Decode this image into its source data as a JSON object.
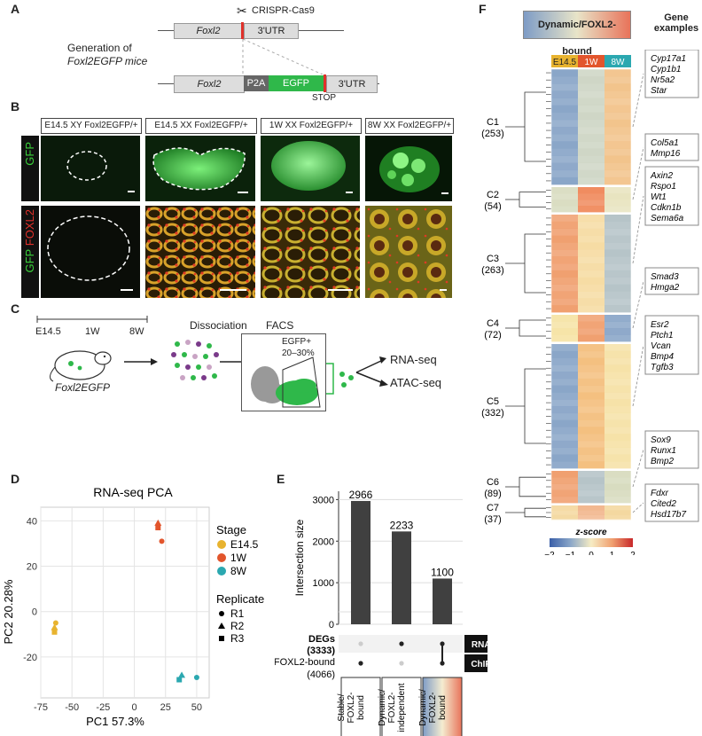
{
  "panel_labels": {
    "a": "A",
    "b": "B",
    "c": "C",
    "d": "D",
    "e": "E",
    "f": "F"
  },
  "panelA": {
    "crispr": "CRISPR-Cas9",
    "generation_line1": "Generation of",
    "generation_line2": "Foxl2EGFP mice",
    "gene": "Foxl2",
    "utr": "3'UTR",
    "p2a": "P2A",
    "egfp": "EGFP",
    "stop": "STOP"
  },
  "panelB": {
    "column_headers": [
      "E14.5 XY Foxl2EGFP/+",
      "E14.5 XX Foxl2EGFP/+",
      "1W XX Foxl2EGFP/+",
      "8W XX Foxl2EGFP/+"
    ],
    "row1_label": "GFP",
    "row2_label_gfp": "GFP",
    "row2_label_foxl2": "FOXL2"
  },
  "panelC": {
    "timepoints": [
      "E14.5",
      "1W",
      "8W"
    ],
    "mouse_label": "Foxl2EGFP",
    "dissociation": "Dissociation",
    "facs": "FACS",
    "gate_label": "EGFP+",
    "gate_pct": "20–30%",
    "outputs": [
      "RNA-seq",
      "ATAC-seq"
    ]
  },
  "panelE": {
    "ylabel": "Intersection size",
    "rows": [
      "DEGs (3333)",
      "FOXL2-bound (4066)"
    ],
    "row_tags": [
      "RNA-seq",
      "ChIP-seq"
    ],
    "bottom_labels": [
      "Stable/ FOXL2- bound",
      "Dynamic/ FOXL2- independent",
      "Dynamic/ FOXL2- bound"
    ]
  },
  "panelF": {
    "title": "Dynamic/FOXL2-bound",
    "gene_examples_title": "Gene examples",
    "columns": [
      "E14.5",
      "1W",
      "8W"
    ],
    "clusters": [
      {
        "name": "C1",
        "n": "(253)"
      },
      {
        "name": "C2",
        "n": "(54)"
      },
      {
        "name": "C3",
        "n": "(263)"
      },
      {
        "name": "C4",
        "n": "(72)"
      },
      {
        "name": "C5",
        "n": "(332)"
      },
      {
        "name": "C6",
        "n": "(89)"
      },
      {
        "name": "C7",
        "n": "(37)"
      }
    ],
    "gene_boxes": [
      [
        "Cyp17a1",
        "Cyp1b1",
        "Nr5a2",
        "Star"
      ],
      [
        "Col5a1",
        "Mmp16"
      ],
      [
        "Axin2",
        "Rspo1",
        "Wt1",
        "Cdkn1b",
        "Sema6a"
      ],
      [
        "Smad3",
        "Hmga2"
      ],
      [
        "Esr2",
        "Ptch1",
        "Vcan",
        "Bmp4",
        "Tgfb3"
      ],
      [
        "Sox9",
        "Runx1",
        "Bmp2"
      ],
      [
        "Fdxr",
        "Cited2",
        "Hsd17b7"
      ]
    ],
    "legend_title": "z-score",
    "legend_ticks": [
      "−2",
      "−1",
      "0",
      "1",
      "2"
    ]
  },
  "colors": {
    "e145": "#e8b32f",
    "w1": "#e2552c",
    "w8": "#2ba8b0",
    "gfp": "#3ad13a",
    "foxl2": "#e0302a",
    "bar": "#404040"
  },
  "chart_data": [
    {
      "type": "scatter",
      "title": "RNA-seq PCA",
      "xlabel": "PC1  57.3%",
      "ylabel": "PC2  20.28%",
      "xlim": [
        -75,
        60
      ],
      "ylim": [
        -38,
        46
      ],
      "xticks": [
        "-75",
        "-50",
        "-25",
        "0",
        "25",
        "50"
      ],
      "yticks": [
        "-20",
        "0",
        "20",
        "40"
      ],
      "legend_stage_title": "Stage",
      "legend_replicate_title": "Replicate",
      "series": [
        {
          "name": "E14.5",
          "color": "#e8b32f",
          "points": [
            {
              "x": -63,
              "y": -5,
              "rep": "R1"
            },
            {
              "x": -64,
              "y": -7,
              "rep": "R2"
            },
            {
              "x": -64,
              "y": -9,
              "rep": "R3"
            }
          ]
        },
        {
          "name": "1W",
          "color": "#e2552c",
          "points": [
            {
              "x": 22,
              "y": 31,
              "rep": "R1"
            },
            {
              "x": 19,
              "y": 39,
              "rep": "R2"
            },
            {
              "x": 19,
              "y": 37,
              "rep": "R3"
            }
          ]
        },
        {
          "name": "8W",
          "color": "#2ba8b0",
          "points": [
            {
              "x": 50,
              "y": -29,
              "rep": "R1"
            },
            {
              "x": 38,
              "y": -28,
              "rep": "R2"
            },
            {
              "x": 36,
              "y": -30,
              "rep": "R3"
            }
          ]
        }
      ],
      "replicates": [
        {
          "name": "R1",
          "shape": "circle"
        },
        {
          "name": "R2",
          "shape": "triangle"
        },
        {
          "name": "R3",
          "shape": "square"
        }
      ]
    },
    {
      "type": "bar",
      "title": "",
      "ylabel": "Intersection size",
      "categories": [
        "Stable/FOXL2-bound",
        "Dynamic/FOXL2-independent",
        "Dynamic/FOXL2-bound"
      ],
      "values": [
        2966,
        2233,
        1100
      ],
      "ylim": [
        0,
        3200
      ],
      "yticks": [
        0,
        1000,
        2000,
        3000
      ]
    }
  ]
}
